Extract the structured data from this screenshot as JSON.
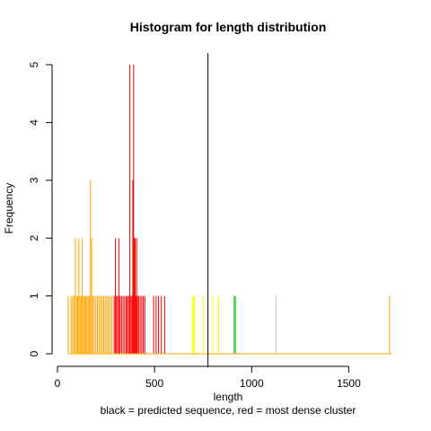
{
  "chart_data": {
    "type": "bar",
    "title": "Histogram for length distribution",
    "xlabel": "length",
    "xlabel2": "black = predicted sequence, red = most dense cluster",
    "ylabel": "Frequency",
    "xlim": [
      0,
      1720
    ],
    "ylim": [
      0,
      5
    ],
    "x_ticks": [
      0,
      500,
      1000,
      1500
    ],
    "y_ticks": [
      0,
      1,
      2,
      3,
      4,
      5
    ],
    "predicted_length": 775,
    "colors": {
      "orange": "#ffa500",
      "red": "#ff0000",
      "yellow": "#ffff00",
      "green": "#00cc00",
      "grey": "#bebebe",
      "baseline": "#ffa500",
      "predicted_line": "#000000"
    },
    "bars": [
      {
        "x": 55,
        "y": 1,
        "color": "orange"
      },
      {
        "x": 70,
        "y": 1,
        "color": "orange"
      },
      {
        "x": 78,
        "y": 1,
        "color": "orange"
      },
      {
        "x": 85,
        "y": 1,
        "color": "orange"
      },
      {
        "x": 92,
        "y": 2,
        "color": "orange"
      },
      {
        "x": 98,
        "y": 1,
        "color": "orange"
      },
      {
        "x": 104,
        "y": 1,
        "color": "orange"
      },
      {
        "x": 110,
        "y": 2,
        "color": "orange"
      },
      {
        "x": 116,
        "y": 1,
        "color": "orange"
      },
      {
        "x": 122,
        "y": 1,
        "color": "orange"
      },
      {
        "x": 128,
        "y": 2,
        "color": "orange"
      },
      {
        "x": 134,
        "y": 1,
        "color": "orange"
      },
      {
        "x": 140,
        "y": 1,
        "color": "orange"
      },
      {
        "x": 146,
        "y": 1,
        "color": "orange"
      },
      {
        "x": 152,
        "y": 1,
        "color": "orange"
      },
      {
        "x": 158,
        "y": 1,
        "color": "orange"
      },
      {
        "x": 164,
        "y": 1,
        "color": "orange"
      },
      {
        "x": 170,
        "y": 3,
        "color": "orange"
      },
      {
        "x": 176,
        "y": 2,
        "color": "orange"
      },
      {
        "x": 182,
        "y": 1,
        "color": "orange"
      },
      {
        "x": 190,
        "y": 1,
        "color": "orange"
      },
      {
        "x": 198,
        "y": 1,
        "color": "orange"
      },
      {
        "x": 206,
        "y": 1,
        "color": "orange"
      },
      {
        "x": 214,
        "y": 1,
        "color": "orange"
      },
      {
        "x": 222,
        "y": 1,
        "color": "orange"
      },
      {
        "x": 230,
        "y": 1,
        "color": "orange"
      },
      {
        "x": 238,
        "y": 1,
        "color": "orange"
      },
      {
        "x": 246,
        "y": 1,
        "color": "orange"
      },
      {
        "x": 254,
        "y": 1,
        "color": "orange"
      },
      {
        "x": 262,
        "y": 1,
        "color": "orange"
      },
      {
        "x": 270,
        "y": 1,
        "color": "orange"
      },
      {
        "x": 280,
        "y": 1,
        "color": "orange"
      },
      {
        "x": 292,
        "y": 1,
        "color": "red"
      },
      {
        "x": 298,
        "y": 2,
        "color": "red"
      },
      {
        "x": 304,
        "y": 1,
        "color": "red"
      },
      {
        "x": 310,
        "y": 1,
        "color": "red"
      },
      {
        "x": 316,
        "y": 2,
        "color": "red"
      },
      {
        "x": 322,
        "y": 1,
        "color": "red"
      },
      {
        "x": 330,
        "y": 1,
        "color": "red"
      },
      {
        "x": 338,
        "y": 1,
        "color": "red"
      },
      {
        "x": 346,
        "y": 1,
        "color": "red"
      },
      {
        "x": 354,
        "y": 1,
        "color": "red"
      },
      {
        "x": 360,
        "y": 1,
        "color": "red"
      },
      {
        "x": 366,
        "y": 1,
        "color": "red"
      },
      {
        "x": 372,
        "y": 5,
        "color": "red"
      },
      {
        "x": 378,
        "y": 1,
        "color": "red"
      },
      {
        "x": 384,
        "y": 1,
        "color": "red"
      },
      {
        "x": 388,
        "y": 3,
        "color": "red"
      },
      {
        "x": 392,
        "y": 5,
        "color": "red"
      },
      {
        "x": 396,
        "y": 2,
        "color": "red"
      },
      {
        "x": 400,
        "y": 2,
        "color": "red"
      },
      {
        "x": 404,
        "y": 1,
        "color": "red"
      },
      {
        "x": 408,
        "y": 2,
        "color": "red"
      },
      {
        "x": 412,
        "y": 1,
        "color": "red"
      },
      {
        "x": 418,
        "y": 1,
        "color": "red"
      },
      {
        "x": 426,
        "y": 1,
        "color": "red"
      },
      {
        "x": 434,
        "y": 1,
        "color": "red"
      },
      {
        "x": 442,
        "y": 1,
        "color": "red"
      },
      {
        "x": 450,
        "y": 1,
        "color": "red"
      },
      {
        "x": 495,
        "y": 1,
        "color": "red"
      },
      {
        "x": 508,
        "y": 1,
        "color": "red"
      },
      {
        "x": 520,
        "y": 1,
        "color": "red"
      },
      {
        "x": 535,
        "y": 1,
        "color": "red"
      },
      {
        "x": 552,
        "y": 1,
        "color": "red"
      },
      {
        "x": 695,
        "y": 1,
        "color": "yellow"
      },
      {
        "x": 700,
        "y": 1,
        "color": "yellow"
      },
      {
        "x": 705,
        "y": 1,
        "color": "yellow"
      },
      {
        "x": 750,
        "y": 1,
        "color": "yellow"
      },
      {
        "x": 800,
        "y": 1,
        "color": "yellow"
      },
      {
        "x": 830,
        "y": 1,
        "color": "yellow"
      },
      {
        "x": 910,
        "y": 1,
        "color": "green"
      },
      {
        "x": 916,
        "y": 1,
        "color": "green"
      },
      {
        "x": 1125,
        "y": 1,
        "color": "grey"
      },
      {
        "x": 1710,
        "y": 1,
        "color": "orange"
      }
    ]
  }
}
